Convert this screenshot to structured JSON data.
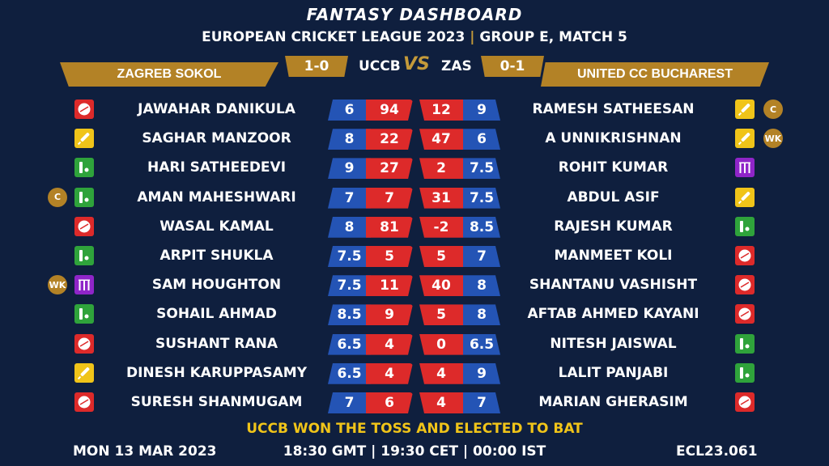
{
  "header": {
    "title": "FANTASY DASHBOARD",
    "league": "EUROPEAN CRICKET LEAGUE 2023",
    "separator": "|",
    "match": "GROUP E, MATCH 5"
  },
  "teams": {
    "left": {
      "name": "ZAGREB SOKOL",
      "abbr": "UCCB",
      "score": "1-0"
    },
    "vs": "VS",
    "right": {
      "name": "UNITED CC BUCHAREST",
      "abbr": "ZAS",
      "score": "0-1"
    }
  },
  "colors": {
    "background": "#0f1f3e",
    "gold": "#b38226",
    "blue": "#2454b5",
    "red": "#dd2a2a",
    "toss_text": "#f0c419"
  },
  "rows": [
    {
      "left": {
        "name": "JAWAHAR DANIKULA",
        "v1": "6",
        "v2": "94",
        "role": "bowler-icon",
        "badge": ""
      },
      "right": {
        "name": "RAMESH SATHEESAN",
        "v1": "12",
        "v2": "9",
        "role": "batsman-icon",
        "badge": "C"
      }
    },
    {
      "left": {
        "name": "SAGHAR MANZOOR",
        "v1": "8",
        "v2": "22",
        "role": "batsman-icon",
        "badge": ""
      },
      "right": {
        "name": "A UNNIKRISHNAN",
        "v1": "47",
        "v2": "6",
        "role": "batsman-icon",
        "badge": "WK"
      }
    },
    {
      "left": {
        "name": "HARI SATHEEDEVI",
        "v1": "9",
        "v2": "27",
        "role": "allrounder-icon",
        "badge": ""
      },
      "right": {
        "name": "ROHIT KUMAR",
        "v1": "2",
        "v2": "7.5",
        "role": "wicketkeeper-icon",
        "badge": ""
      }
    },
    {
      "left": {
        "name": "AMAN MAHESHWARI",
        "v1": "7",
        "v2": "7",
        "role": "allrounder-icon",
        "badge": "C"
      },
      "right": {
        "name": "ABDUL ASIF",
        "v1": "31",
        "v2": "7.5",
        "role": "batsman-icon",
        "badge": ""
      }
    },
    {
      "left": {
        "name": "WASAL KAMAL",
        "v1": "8",
        "v2": "81",
        "role": "bowler-icon",
        "badge": ""
      },
      "right": {
        "name": "RAJESH KUMAR",
        "v1": "-2",
        "v2": "8.5",
        "role": "allrounder-icon",
        "badge": ""
      }
    },
    {
      "left": {
        "name": "ARPIT SHUKLA",
        "v1": "7.5",
        "v2": "5",
        "role": "allrounder-icon",
        "badge": ""
      },
      "right": {
        "name": "MANMEET KOLI",
        "v1": "5",
        "v2": "7",
        "role": "bowler-icon",
        "badge": ""
      }
    },
    {
      "left": {
        "name": "SAM HOUGHTON",
        "v1": "7.5",
        "v2": "11",
        "role": "wicketkeeper-icon",
        "badge": "WK"
      },
      "right": {
        "name": "SHANTANU VASHISHT",
        "v1": "40",
        "v2": "8",
        "role": "bowler-icon",
        "badge": ""
      }
    },
    {
      "left": {
        "name": "SOHAIL AHMAD",
        "v1": "8.5",
        "v2": "9",
        "role": "allrounder-icon",
        "badge": ""
      },
      "right": {
        "name": "AFTAB AHMED KAYANI",
        "v1": "5",
        "v2": "8",
        "role": "bowler-icon",
        "badge": ""
      }
    },
    {
      "left": {
        "name": "SUSHANT RANA",
        "v1": "6.5",
        "v2": "4",
        "role": "bowler-icon",
        "badge": ""
      },
      "right": {
        "name": "NITESH JAISWAL",
        "v1": "0",
        "v2": "6.5",
        "role": "allrounder-icon",
        "badge": ""
      }
    },
    {
      "left": {
        "name": "DINESH KARUPPASAMY",
        "v1": "6.5",
        "v2": "4",
        "role": "batsman-icon",
        "badge": ""
      },
      "right": {
        "name": "LALIT PANJABI",
        "v1": "4",
        "v2": "9",
        "role": "allrounder-icon",
        "badge": ""
      }
    },
    {
      "left": {
        "name": "SURESH SHANMUGAM",
        "v1": "7",
        "v2": "6",
        "role": "bowler-icon",
        "badge": ""
      },
      "right": {
        "name": "MARIAN GHERASIM",
        "v1": "4",
        "v2": "7",
        "role": "bowler-icon",
        "badge": ""
      }
    }
  ],
  "toss": "UCCB WON THE TOSS AND ELECTED TO BAT",
  "footer": {
    "date": "MON 13 MAR 2023",
    "time": "18:30 GMT | 19:30 CET | 00:00 IST",
    "code": "ECL23.061"
  }
}
